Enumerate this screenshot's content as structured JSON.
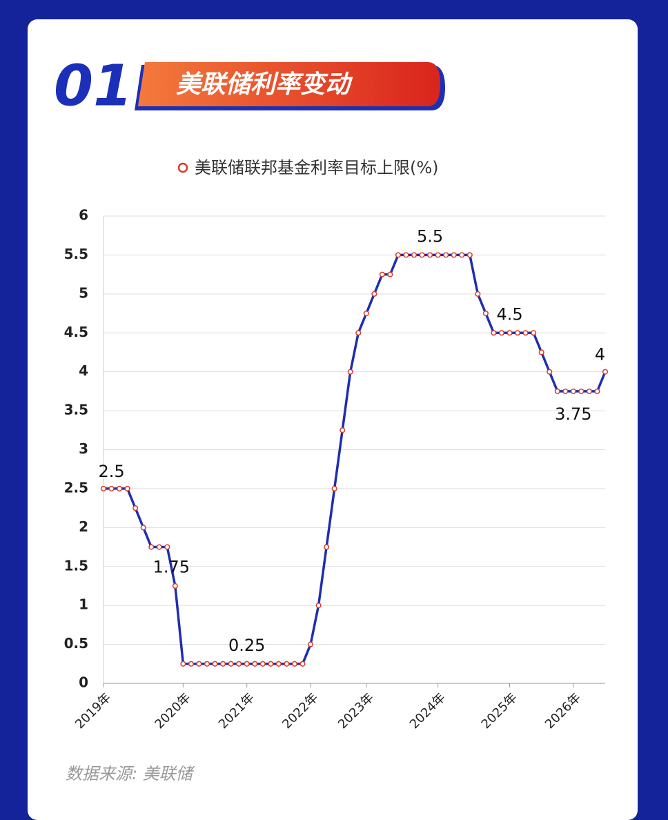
{
  "chart_data": {
    "type": "line",
    "section_number": "01",
    "section_title": "美联储利率变动",
    "source": "数据来源: 美联储",
    "categories": [
      "2019年",
      null,
      null,
      null,
      null,
      null,
      null,
      null,
      null,
      null,
      "2020年",
      null,
      null,
      null,
      null,
      null,
      null,
      null,
      "2021年",
      null,
      null,
      null,
      null,
      null,
      null,
      null,
      "2022年",
      null,
      null,
      null,
      null,
      null,
      null,
      "2023年",
      null,
      null,
      null,
      null,
      null,
      null,
      null,
      null,
      "2024年",
      null,
      null,
      null,
      null,
      null,
      null,
      null,
      null,
      "2025年",
      null,
      null,
      null,
      null,
      null,
      null,
      null,
      "2026年",
      null,
      null,
      null,
      null
    ],
    "series": [
      {
        "name": "美联储联邦基金利率目标上限(%)",
        "color": "#1f2db0",
        "marker_color": "#d93a2b",
        "values": [
          2.5,
          2.5,
          2.5,
          2.5,
          2.25,
          2,
          1.75,
          1.75,
          1.75,
          1.25,
          0.25,
          0.25,
          0.25,
          0.25,
          0.25,
          0.25,
          0.25,
          0.25,
          0.25,
          0.25,
          0.25,
          0.25,
          0.25,
          0.25,
          0.25,
          0.25,
          0.5,
          1,
          1.75,
          2.5,
          3.25,
          4,
          4.5,
          4.75,
          5,
          5.25,
          5.25,
          5.5,
          5.5,
          5.5,
          5.5,
          5.5,
          5.5,
          5.5,
          5.5,
          5.5,
          5.5,
          5,
          4.75,
          4.5,
          4.5,
          4.5,
          4.5,
          4.5,
          4.5,
          4.25,
          4,
          3.75,
          3.75,
          3.75,
          3.75,
          3.75,
          3.75,
          4
        ]
      }
    ],
    "ylim": [
      0,
      6
    ],
    "yticks": [
      0,
      0.5,
      1,
      1.5,
      2,
      2.5,
      3,
      3.5,
      4,
      4.5,
      5,
      5.5,
      6
    ],
    "grid": true,
    "legend": "top"
  }
}
